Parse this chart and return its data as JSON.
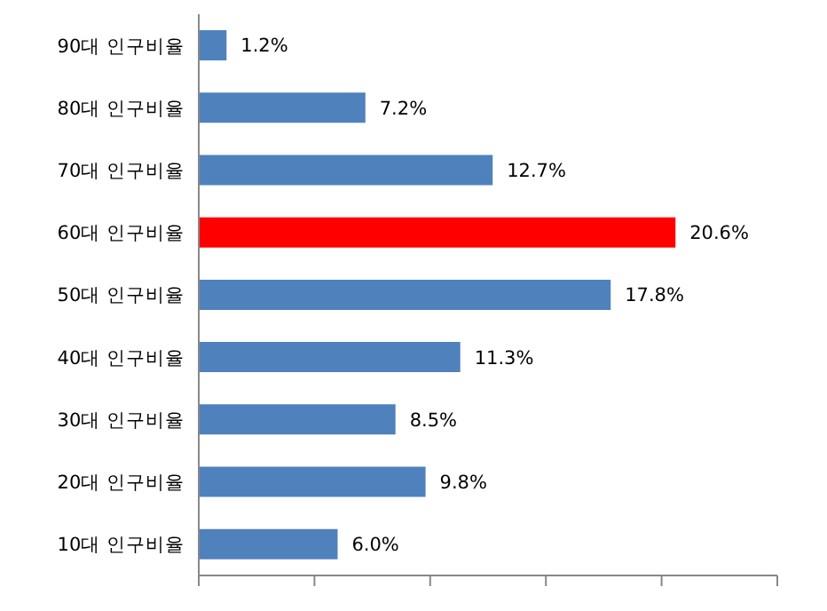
{
  "chart_data": {
    "type": "bar",
    "orientation": "horizontal",
    "categories": [
      "90대 인구비율",
      "80대 인구비율",
      "70대 인구비율",
      "60대 인구비율",
      "50대 인구비율",
      "40대 인구비율",
      "30대 인구비율",
      "20대 인구비율",
      "10대 인구비율"
    ],
    "values": [
      1.2,
      7.2,
      12.7,
      20.6,
      17.8,
      11.3,
      8.5,
      9.8,
      6.0
    ],
    "colors": [
      "#4f81bd",
      "#4f81bd",
      "#4f81bd",
      "#ff0000",
      "#4f81bd",
      "#4f81bd",
      "#4f81bd",
      "#4f81bd",
      "#4f81bd"
    ],
    "value_labels": [
      "1.2%",
      "7.2%",
      "12.7%",
      "20.6%",
      "17.8%",
      "11.3%",
      "8.5%",
      "9.8%",
      "6.0%"
    ],
    "xlim": [
      0,
      25
    ],
    "xticks": [
      {
        "value": 0,
        "label": null
      },
      {
        "value": 5,
        "label": null
      },
      {
        "value": 10,
        "label": null
      },
      {
        "value": 15,
        "label": null
      },
      {
        "value": 20,
        "label": null
      },
      {
        "value": 25,
        "label": null
      }
    ],
    "tick_labels": "y",
    "grid": false
  }
}
